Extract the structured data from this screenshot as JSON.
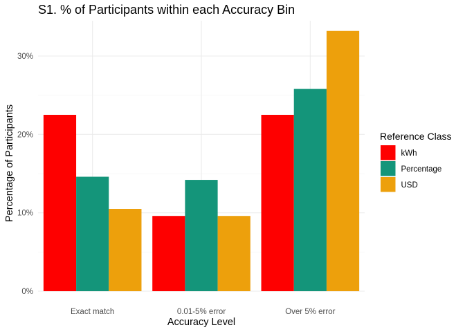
{
  "chart_data": {
    "type": "bar",
    "title": "S1. % of Participants within each Accuracy Bin",
    "xlabel": "Accuracy Level",
    "ylabel": "Percentage of Participants",
    "categories": [
      "Exact match",
      "0.01-5% error",
      "Over 5% error"
    ],
    "series": [
      {
        "name": "kWh",
        "color": "#fe0000",
        "values": [
          22.5,
          9.6,
          22.5
        ]
      },
      {
        "name": "Percentage",
        "color": "#14957a",
        "values": [
          14.6,
          14.2,
          25.8
        ]
      },
      {
        "name": "USD",
        "color": "#eda00c",
        "values": [
          10.5,
          9.6,
          33.2
        ]
      }
    ],
    "ylim": [
      0,
      34.5
    ],
    "yticks": [
      0,
      10,
      20,
      30
    ],
    "ytick_labels": [
      "0%",
      "10%",
      "20%",
      "30%"
    ],
    "grid": true,
    "legend": {
      "title": "Reference Class",
      "position": "right"
    }
  }
}
